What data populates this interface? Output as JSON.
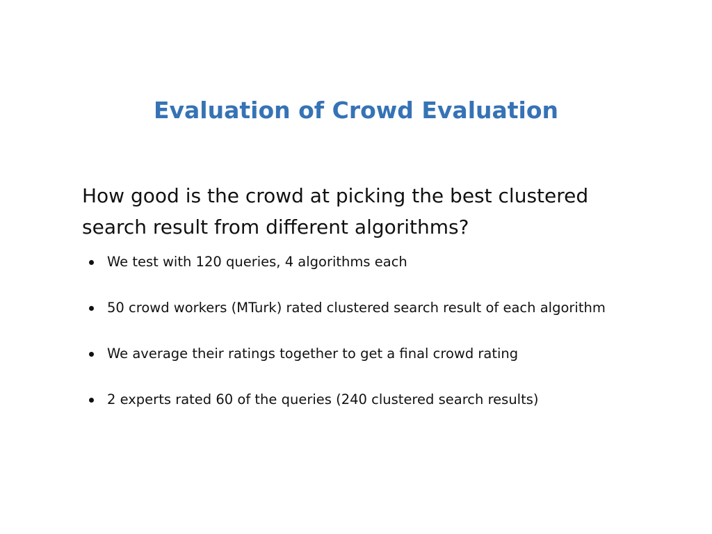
{
  "slide": {
    "title": "Evaluation of Crowd Evaluation",
    "question": "How good is the crowd at picking the best clustered search result from different algorithms?",
    "bullets": [
      "We test with 120 queries, 4 algorithms each",
      "50 crowd workers (MTurk) rated clustered search result of each algorithm",
      "We average their ratings together to get a final crowd rating",
      "2 experts rated 60 of the queries (240 clustered search results)"
    ]
  },
  "colors": {
    "title": "#3673b5",
    "text": "#111111",
    "background": "#ffffff"
  }
}
